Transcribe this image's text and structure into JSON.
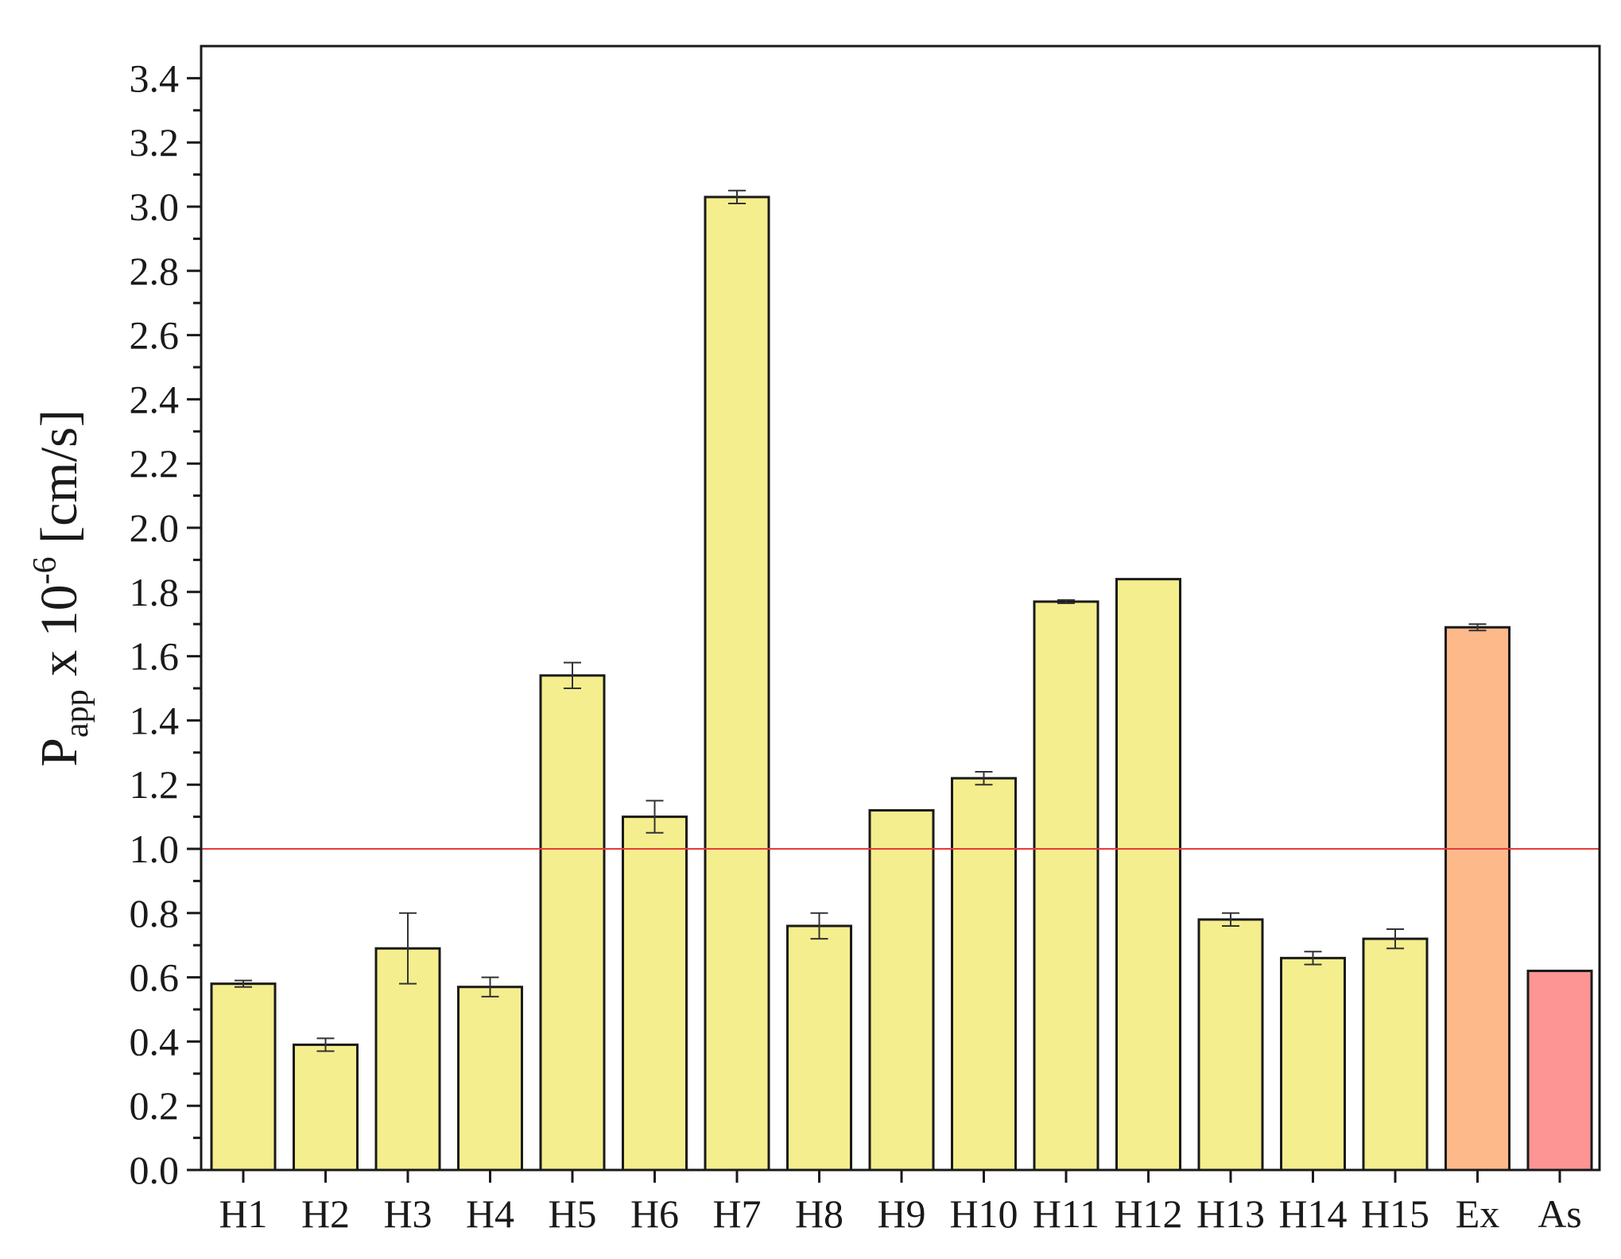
{
  "chart_data": {
    "type": "bar",
    "title": "",
    "xlabel": "",
    "ylabel": {
      "main": "P",
      "subscript": "app",
      "middle": " x 10",
      "superscript": "-6",
      "unit": " [cm/s]"
    },
    "categories": [
      "H1",
      "H2",
      "H3",
      "H4",
      "H5",
      "H6",
      "H7",
      "H8",
      "H9",
      "H10",
      "H11",
      "H12",
      "H13",
      "H14",
      "H15",
      "Ex",
      "As"
    ],
    "values": [
      0.58,
      0.39,
      0.69,
      0.57,
      1.54,
      1.1,
      3.03,
      0.76,
      1.12,
      1.22,
      1.77,
      1.84,
      0.78,
      0.66,
      0.72,
      1.69,
      0.62
    ],
    "errors": [
      0.01,
      0.02,
      0.11,
      0.03,
      0.04,
      0.05,
      0.02,
      0.04,
      0.0,
      0.02,
      0.005,
      0.0,
      0.02,
      0.02,
      0.03,
      0.01,
      0.0
    ],
    "bar_colors": [
      "#f4ee8e",
      "#f4ee8e",
      "#f4ee8e",
      "#f4ee8e",
      "#f4ee8e",
      "#f4ee8e",
      "#f4ee8e",
      "#f4ee8e",
      "#f4ee8e",
      "#f4ee8e",
      "#f4ee8e",
      "#f4ee8e",
      "#f4ee8e",
      "#f4ee8e",
      "#f4ee8e",
      "#fdb98a",
      "#fd9595"
    ],
    "ylim": [
      0,
      3.5
    ],
    "yticks": [
      "0.0",
      "0.2",
      "0.4",
      "0.6",
      "0.8",
      "1.0",
      "1.2",
      "1.4",
      "1.6",
      "1.8",
      "2.0",
      "2.2",
      "2.4",
      "2.6",
      "2.8",
      "3.0",
      "3.2",
      "3.4"
    ],
    "reference_line": {
      "y": 1.0,
      "color": "#e83a3a"
    },
    "grid": false,
    "legend": "none",
    "bar_edge_color": "#1a1a1a",
    "axis_color": "#1a1a1a"
  }
}
